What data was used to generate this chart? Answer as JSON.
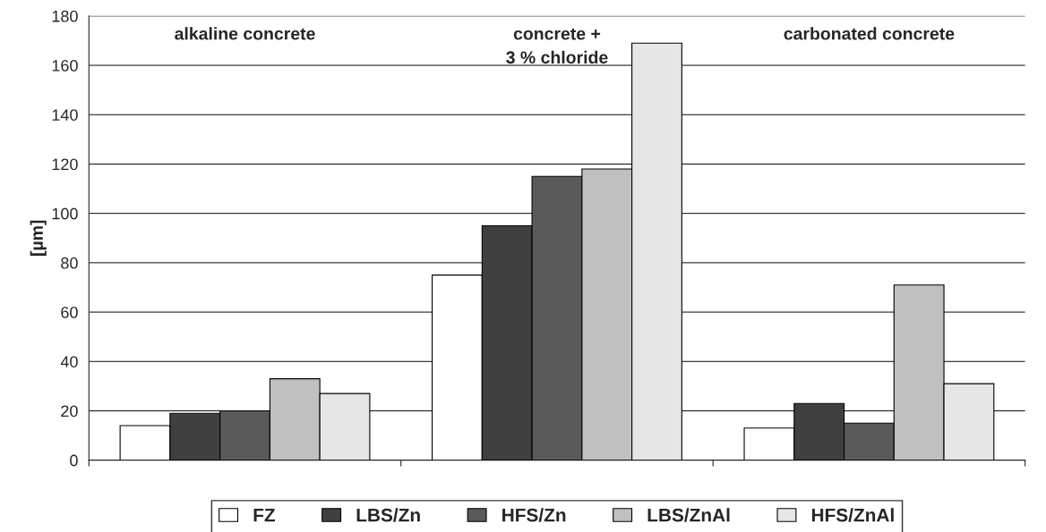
{
  "chart_data": {
    "type": "bar",
    "ylabel": "[µm]",
    "categories": [
      "alkaline concrete",
      "concrete +\n3 % chloride",
      "carbonated concrete"
    ],
    "series": [
      {
        "name": "FZ",
        "color": "#ffffff",
        "values": [
          14,
          75,
          13
        ]
      },
      {
        "name": "LBS/Zn",
        "color": "#404040",
        "values": [
          19,
          95,
          23
        ]
      },
      {
        "name": "HFS/Zn",
        "color": "#5a5a5a",
        "values": [
          20,
          115,
          15
        ]
      },
      {
        "name": "LBS/ZnAl",
        "color": "#c0c0c0",
        "values": [
          33,
          118,
          71
        ]
      },
      {
        "name": "HFS/ZnAl",
        "color": "#e6e6e6",
        "values": [
          27,
          169,
          31
        ]
      }
    ],
    "ylim": [
      0,
      180
    ],
    "yticks": [
      0,
      20,
      40,
      60,
      80,
      100,
      120,
      140,
      160,
      180
    ],
    "grid": "y",
    "legend": "bottom"
  }
}
